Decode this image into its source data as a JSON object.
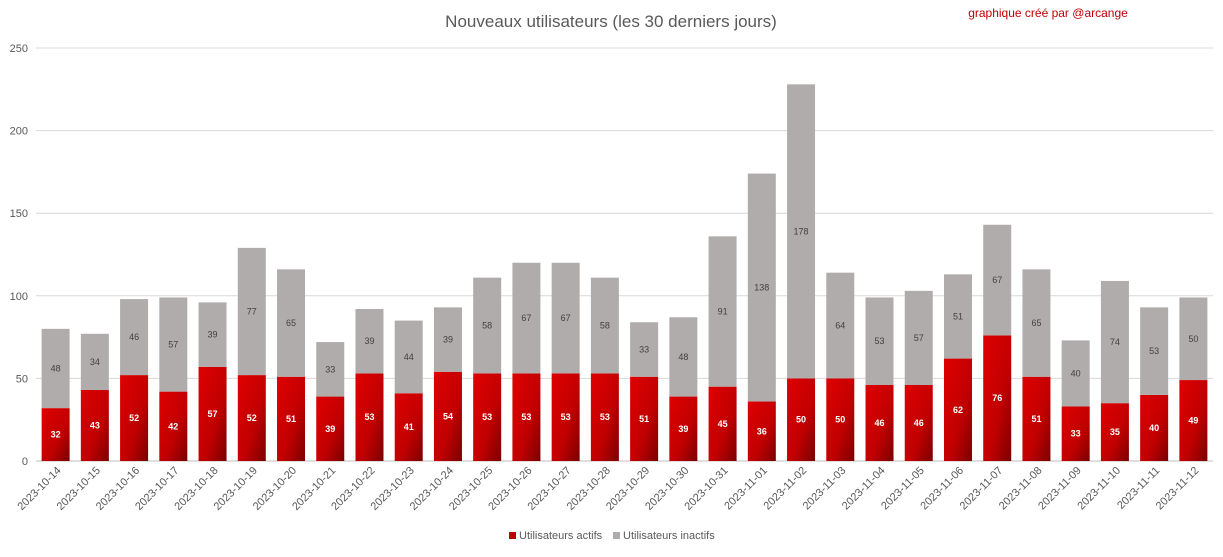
{
  "chart_data": {
    "type": "bar",
    "stacked": true,
    "title": "Nouveaux utilisateurs  (les 30 derniers  jours)",
    "annotation": "graphique créé par @arcange",
    "categories": [
      "2023-10-14",
      "2023-10-15",
      "2023-10-16",
      "2023-10-17",
      "2023-10-18",
      "2023-10-19",
      "2023-10-20",
      "2023-10-21",
      "2023-10-22",
      "2023-10-23",
      "2023-10-24",
      "2023-10-25",
      "2023-10-26",
      "2023-10-27",
      "2023-10-28",
      "2023-10-29",
      "2023-10-30",
      "2023-10-31",
      "2023-11-01",
      "2023-11-02",
      "2023-11-03",
      "2023-11-04",
      "2023-11-05",
      "2023-11-06",
      "2023-11-07",
      "2023-11-08",
      "2023-11-09",
      "2023-11-10",
      "2023-11-11",
      "2023-11-12"
    ],
    "series": [
      {
        "name": "Utilisateurs actifs",
        "color": "#c00000",
        "values": [
          32,
          43,
          52,
          42,
          57,
          52,
          51,
          39,
          53,
          41,
          54,
          53,
          53,
          53,
          53,
          51,
          39,
          45,
          36,
          50,
          50,
          46,
          46,
          62,
          76,
          51,
          33,
          35,
          40,
          49
        ]
      },
      {
        "name": "Utilisateurs inactifs",
        "color": "#b0acac",
        "values": [
          48,
          34,
          46,
          57,
          39,
          77,
          65,
          33,
          39,
          44,
          39,
          58,
          67,
          67,
          58,
          33,
          48,
          91,
          138,
          178,
          64,
          53,
          57,
          51,
          67,
          65,
          40,
          74,
          53,
          50
        ]
      }
    ],
    "ylim": [
      0,
      250
    ],
    "yticks": [
      0,
      50,
      100,
      150,
      200,
      250
    ],
    "grid": true,
    "legend": "bottom"
  }
}
